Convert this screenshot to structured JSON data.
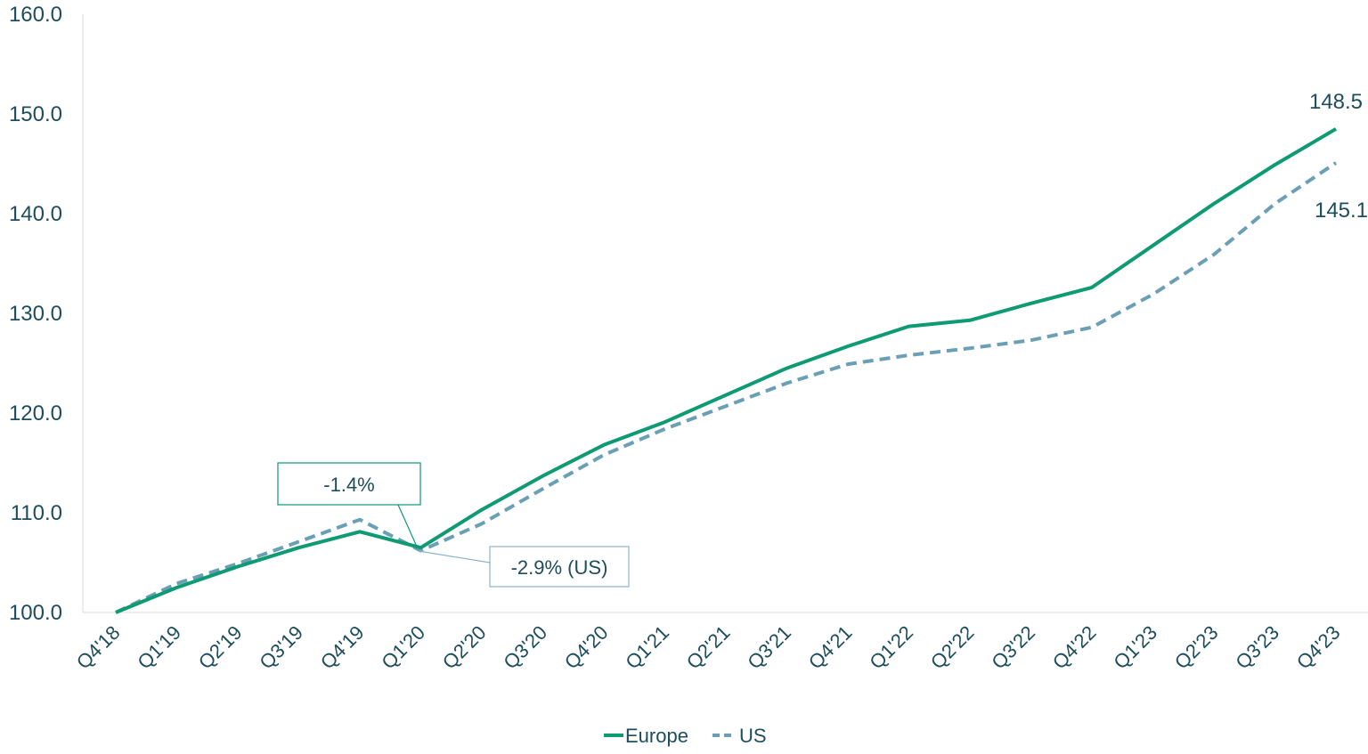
{
  "chart_data": {
    "type": "line",
    "categories": [
      "Q4'18",
      "Q1'19",
      "Q2'19",
      "Q3'19",
      "Q4'19",
      "Q1'20",
      "Q2'20",
      "Q3'20",
      "Q4'20",
      "Q1'21",
      "Q2'21",
      "Q3'21",
      "Q4'21",
      "Q1'22",
      "Q2'22",
      "Q3'22",
      "Q4'22",
      "Q1'23",
      "Q2'23",
      "Q3'23",
      "Q4'23"
    ],
    "series": [
      {
        "name": "Europe",
        "color": "#0e9a73",
        "style": "solid",
        "values": [
          100.0,
          102.5,
          104.6,
          106.5,
          108.1,
          106.5,
          110.3,
          113.7,
          116.8,
          119.1,
          121.8,
          124.5,
          126.7,
          128.7,
          129.3,
          131.0,
          132.6,
          136.8,
          141.0,
          144.9,
          148.5
        ]
      },
      {
        "name": "US",
        "color": "#6a9fb5",
        "style": "dashed",
        "values": [
          100.0,
          102.9,
          104.9,
          107.1,
          109.3,
          106.2,
          108.9,
          112.4,
          115.8,
          118.4,
          120.7,
          123.0,
          124.9,
          125.8,
          126.5,
          127.3,
          128.6,
          131.9,
          135.9,
          141.0,
          145.1
        ]
      }
    ],
    "ylim": [
      100,
      160
    ],
    "yticks": [
      "100.0",
      "110.0",
      "120.0",
      "130.0",
      "140.0",
      "150.0",
      "160.0"
    ],
    "end_labels": {
      "Europe": "148.5",
      "US": "145.1"
    },
    "annotations": {
      "europe_dip": "-1.4%",
      "us_dip": "-2.9% (US)"
    },
    "legend": {
      "position": "bottom",
      "items": [
        "Europe",
        "US"
      ]
    },
    "grid": false
  }
}
